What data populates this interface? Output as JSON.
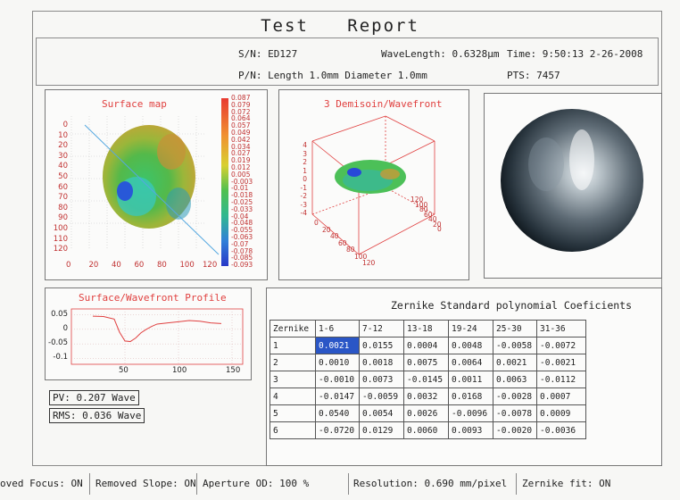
{
  "report_title": "Test  Report",
  "header": {
    "sn": "S/N: ED127",
    "wavelength": "WaveLength: 0.6328μm",
    "time": "Time: 9:50:13 2-26-2008",
    "pn": "P/N: Length 1.0mm  Diameter 1.0mm",
    "pts": "PTS: 7457"
  },
  "surface_map": {
    "title": "Surface map",
    "y_ticks": [
      "0",
      "10",
      "20",
      "30",
      "40",
      "50",
      "60",
      "70",
      "80",
      "90",
      "100",
      "110",
      "120"
    ],
    "x_ticks": [
      "0",
      "20",
      "40",
      "60",
      "80",
      "100",
      "120"
    ],
    "colorbar": [
      "0.087",
      "0.079",
      "0.072",
      "0.064",
      "0.057",
      "0.049",
      "0.042",
      "0.034",
      "0.027",
      "0.019",
      "0.012",
      "0.005",
      "-0.003",
      "-0.01",
      "-0.018",
      "-0.025",
      "-0.033",
      "-0.04",
      "-0.048",
      "-0.055",
      "-0.063",
      "-0.07",
      "-0.078",
      "-0.085",
      "-0.093"
    ]
  },
  "wavefront3d": {
    "title": "3 Demisoin/Wavefront",
    "z_ticks": [
      "4",
      "3",
      "2",
      "1",
      "0",
      "-1",
      "-2",
      "-3",
      "-4"
    ],
    "x_ticks": [
      "0",
      "20",
      "40",
      "60",
      "80",
      "100",
      "120"
    ],
    "y_ticks": [
      "0",
      "20",
      "40",
      "60",
      "80",
      "100",
      "120"
    ]
  },
  "profile": {
    "title": "Surface/Wavefront Profile",
    "y_ticks": [
      "0.05",
      "0",
      "-0.05",
      "-0.1"
    ],
    "x_ticks": [
      "50",
      "100",
      "150"
    ]
  },
  "chart_data": {
    "type": "line",
    "title": "Surface/Wavefront Profile",
    "x": [
      20,
      30,
      40,
      45,
      50,
      55,
      60,
      65,
      70,
      75,
      80,
      90,
      100,
      110,
      120,
      130,
      140
    ],
    "y": [
      0.045,
      0.044,
      0.035,
      -0.01,
      -0.04,
      -0.042,
      -0.03,
      -0.012,
      0,
      0.01,
      0.018,
      0.022,
      0.026,
      0.03,
      0.028,
      0.022,
      0.02
    ],
    "xlim": [
      0,
      160
    ],
    "ylim": [
      -0.12,
      0.07
    ],
    "grid": true
  },
  "stats": {
    "pv": "PV: 0.207 Wave",
    "rms": "RMS: 0.036 Wave"
  },
  "zernike": {
    "title": "Zernike Standard polynomial Coeficients",
    "headers": [
      "Zernike",
      "1-6",
      "7-12",
      "13-18",
      "19-24",
      "25-30",
      "31-36"
    ],
    "rows": [
      [
        "1",
        "0.0021",
        "0.0155",
        "0.0004",
        "0.0048",
        "-0.0058",
        "-0.0072"
      ],
      [
        "2",
        "0.0010",
        "0.0018",
        "0.0075",
        "0.0064",
        "0.0021",
        "-0.0021"
      ],
      [
        "3",
        "-0.0010",
        "0.0073",
        "-0.0145",
        "0.0011",
        "0.0063",
        "-0.0112"
      ],
      [
        "4",
        "-0.0147",
        "-0.0059",
        "0.0032",
        "0.0168",
        "-0.0028",
        "0.0007"
      ],
      [
        "5",
        "0.0540",
        "0.0054",
        "0.0026",
        "-0.0096",
        "-0.0078",
        "0.0009"
      ],
      [
        "6",
        "-0.0720",
        "0.0129",
        "0.0060",
        "0.0093",
        "-0.0020",
        "-0.0036"
      ]
    ]
  },
  "footer": {
    "focus": "oved Focus: ON",
    "slope": "Removed Slope: ON",
    "aperture": "Aperture OD: 100  %",
    "resolution": "Resolution: 0.690 mm/pixel",
    "zfit": "Zernike fit: ON"
  }
}
